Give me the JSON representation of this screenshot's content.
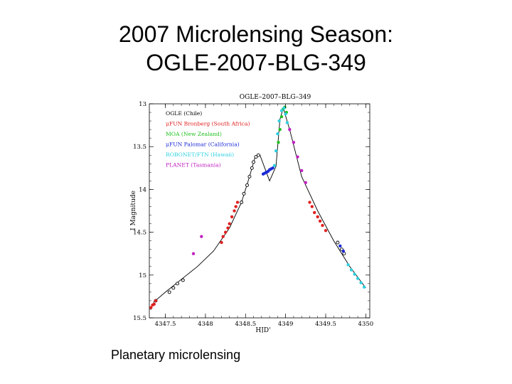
{
  "slide": {
    "title_line1": "2007 Microlensing Season:",
    "title_line2": "OGLE-2007-BLG-349",
    "caption": "Planetary microlensing"
  },
  "chart_data": {
    "type": "scatter",
    "title": "OGLE–2007–BLG–349",
    "xlabel": "HJD'",
    "ylabel": "I Magnitude",
    "xlim": [
      4347.3,
      4350.05
    ],
    "ylim": [
      15.5,
      13.0
    ],
    "y_inverted": true,
    "x_ticks": [
      4347.5,
      4348,
      4348.5,
      4349,
      4349.5,
      4350
    ],
    "x_tick_labels": [
      "4347.5",
      "4348",
      "4348.5",
      "4349",
      "4349.5",
      "4350"
    ],
    "y_ticks": [
      13,
      13.5,
      14,
      14.5,
      15,
      15.5
    ],
    "y_tick_labels": [
      "13",
      "13.5",
      "14",
      "14.5",
      "15",
      "15.5"
    ],
    "legend_position": "top-left",
    "model_curve": {
      "x": [
        4347.35,
        4347.5,
        4347.7,
        4347.9,
        4348.1,
        4348.3,
        4348.45,
        4348.55,
        4348.62,
        4348.68,
        4348.72,
        4348.8,
        4348.88,
        4348.93,
        4348.97,
        4349.05,
        4349.2,
        4349.4,
        4349.6,
        4349.8,
        4350.0
      ],
      "y": [
        15.32,
        15.2,
        15.05,
        14.9,
        14.72,
        14.45,
        14.15,
        13.85,
        13.62,
        13.6,
        13.7,
        13.9,
        13.73,
        13.18,
        13.05,
        13.3,
        13.85,
        14.25,
        14.6,
        14.9,
        15.15
      ]
    },
    "series": [
      {
        "name": "OGLE (Chile)",
        "color": "#000000",
        "marker": "open-circle",
        "x": [
          4347.38,
          4347.55,
          4347.6,
          4347.65,
          4347.72,
          4348.45,
          4348.48,
          4348.52,
          4348.55,
          4348.58,
          4348.6,
          4348.63,
          4348.66,
          4349.65,
          4349.7,
          4349.73
        ],
        "y": [
          15.3,
          15.2,
          15.15,
          15.1,
          15.06,
          14.15,
          14.05,
          13.95,
          13.85,
          13.75,
          13.68,
          13.62,
          13.6,
          14.62,
          14.7,
          14.75
        ]
      },
      {
        "name": "μFUN Bronberg (South Africa)",
        "color": "#e02020",
        "marker": "filled-circle",
        "x": [
          4347.32,
          4347.34,
          4347.36,
          4347.38,
          4348.2,
          4348.22,
          4348.25,
          4348.28,
          4348.3,
          4348.33,
          4348.36,
          4348.38,
          4348.4,
          4349.3,
          4349.33,
          4349.36,
          4349.4,
          4349.43,
          4349.46,
          4349.5
        ],
        "y": [
          15.38,
          15.35,
          15.34,
          15.3,
          14.62,
          14.55,
          14.5,
          14.45,
          14.4,
          14.32,
          14.25,
          14.2,
          14.15,
          14.15,
          14.2,
          14.27,
          14.32,
          14.37,
          14.42,
          14.48
        ]
      },
      {
        "name": "MOA (New Zealand)",
        "color": "#20c020",
        "marker": "filled-circle",
        "x": [
          4348.91,
          4348.93,
          4348.95,
          4348.97,
          4348.99,
          4349.01
        ],
        "y": [
          13.45,
          13.3,
          13.15,
          13.06,
          13.04,
          13.1
        ]
      },
      {
        "name": "μFUN Palomar (California)",
        "color": "#1a2ad8",
        "marker": "filled-circle",
        "x": [
          4348.72,
          4348.74,
          4348.76,
          4348.78,
          4348.8,
          4348.82,
          4348.84,
          4349.68,
          4349.72
        ],
        "y": [
          13.82,
          13.81,
          13.8,
          13.79,
          13.77,
          13.76,
          13.75,
          14.66,
          14.72
        ]
      },
      {
        "name": "ROBONET/FTN (Hawaii)",
        "color": "#30d0e0",
        "marker": "filled-circle",
        "x": [
          4348.86,
          4348.88,
          4348.9,
          4348.92,
          4348.95,
          4348.98,
          4349.0,
          4349.02,
          4349.78,
          4349.82,
          4349.86,
          4349.9,
          4349.94,
          4349.98
        ],
        "y": [
          13.72,
          13.55,
          13.35,
          13.2,
          13.08,
          13.05,
          13.12,
          13.22,
          14.88,
          14.94,
          14.99,
          15.04,
          15.09,
          15.14
        ]
      },
      {
        "name": "PLANET (Tasmania)",
        "color": "#c020c0",
        "marker": "filled-circle",
        "x": [
          4347.85,
          4347.95,
          4349.05,
          4349.1,
          4349.15,
          4349.2,
          4349.25
        ],
        "y": [
          14.75,
          14.55,
          13.3,
          13.45,
          13.62,
          13.78,
          13.92
        ]
      }
    ]
  }
}
